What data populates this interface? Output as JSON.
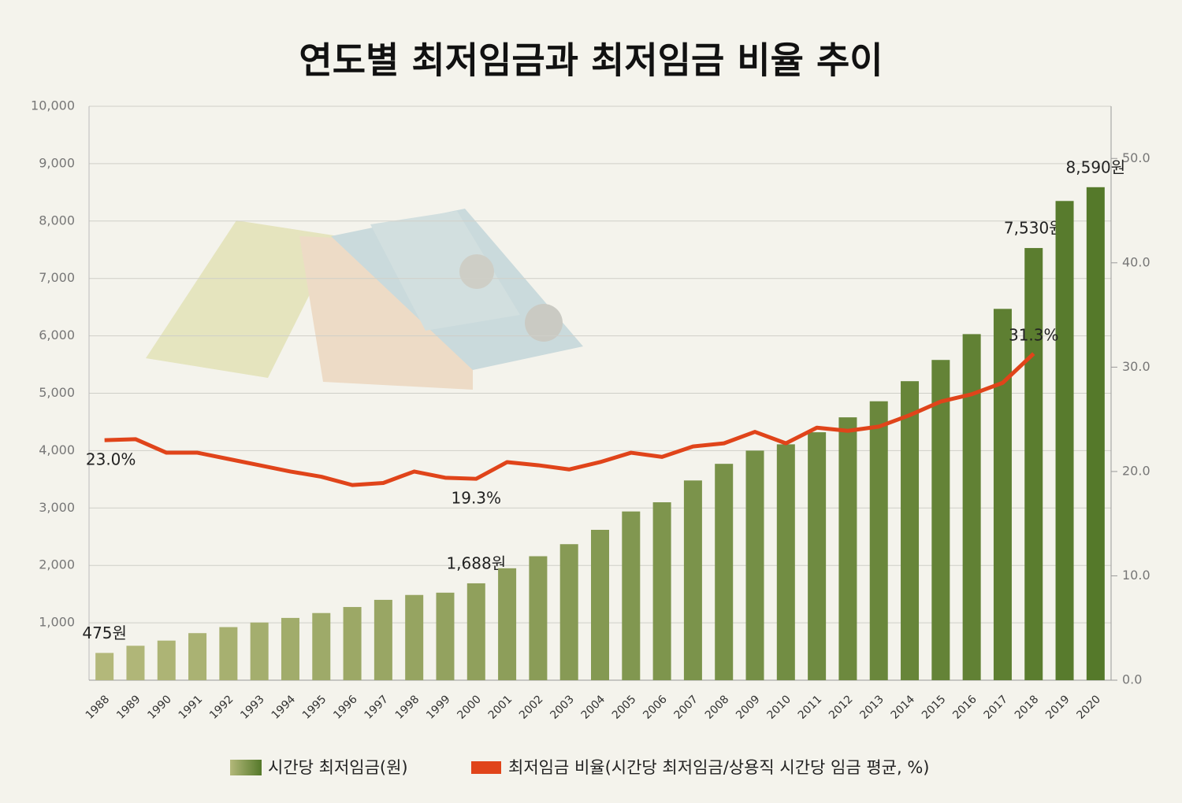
{
  "chart_data": {
    "type": "bar_line",
    "title": "연도별 최저임금과 최저임금 비율 추이",
    "categories": [
      "1988",
      "1989",
      "1990",
      "1991",
      "1992",
      "1993",
      "1994",
      "1995",
      "1996",
      "1997",
      "1998",
      "1999",
      "2000",
      "2001",
      "2002",
      "2003",
      "2004",
      "2005",
      "2006",
      "2007",
      "2008",
      "2009",
      "2010",
      "2011",
      "2012",
      "2013",
      "2014",
      "2015",
      "2016",
      "2017",
      "2018",
      "2019",
      "2020"
    ],
    "series": [
      {
        "name": "시간당 최저임금(원)",
        "type": "bar",
        "color": "#b3b87a",
        "color_end": "#55792a",
        "values": [
          475,
          600,
          690,
          820,
          925,
          1005,
          1085,
          1170,
          1275,
          1400,
          1485,
          1525,
          1688,
          1950,
          2160,
          2370,
          2620,
          2940,
          3100,
          3480,
          3770,
          4000,
          4110,
          4320,
          4580,
          4860,
          5210,
          5580,
          6030,
          6470,
          7530,
          8350,
          8590
        ],
        "value_labels": [
          "475원",
          null,
          null,
          null,
          null,
          null,
          null,
          null,
          null,
          null,
          null,
          null,
          "1,688원",
          null,
          null,
          null,
          null,
          null,
          null,
          null,
          null,
          null,
          null,
          null,
          null,
          null,
          null,
          null,
          null,
          null,
          "7,530원",
          null,
          "8,590원"
        ]
      },
      {
        "name": "최저임금 비율(시간당 최저임금/상용직 시간당 임금 평균, %)",
        "type": "line",
        "axis": "y2",
        "color": "#e0441a",
        "values": [
          23.0,
          23.1,
          21.8,
          21.8,
          21.2,
          20.6,
          20.0,
          19.5,
          18.7,
          18.9,
          20.0,
          19.4,
          19.3,
          20.9,
          20.6,
          20.2,
          20.9,
          21.8,
          21.4,
          22.4,
          22.7,
          23.8,
          22.7,
          24.2,
          23.9,
          24.3,
          25.4,
          26.7,
          27.4,
          28.5,
          31.3,
          null,
          null
        ],
        "value_labels": [
          "23.0%",
          null,
          null,
          null,
          null,
          null,
          null,
          null,
          null,
          null,
          null,
          null,
          "19.3%",
          null,
          null,
          null,
          null,
          null,
          null,
          null,
          null,
          null,
          null,
          null,
          null,
          null,
          null,
          null,
          null,
          null,
          "31.3%",
          null,
          null
        ]
      }
    ],
    "ylim": [
      0,
      10000
    ],
    "yticks": [
      {
        "value": 1000,
        "label": "1,000"
      },
      {
        "value": 2000,
        "label": "2,000"
      },
      {
        "value": 3000,
        "label": "3,000"
      },
      {
        "value": 4000,
        "label": "4,000"
      },
      {
        "value": 5000,
        "label": "5,000"
      },
      {
        "value": 6000,
        "label": "6,000"
      },
      {
        "value": 7000,
        "label": "7,000"
      },
      {
        "value": 8000,
        "label": "8,000"
      },
      {
        "value": 9000,
        "label": "9,000"
      },
      {
        "value": 10000,
        "label": "10,000"
      }
    ],
    "y2lim": [
      0,
      55
    ],
    "y2ticks": [
      {
        "value": 0,
        "label": "0.0"
      },
      {
        "value": 10,
        "label": "10.0"
      },
      {
        "value": 20,
        "label": "20.0"
      },
      {
        "value": 30,
        "label": "30.0"
      },
      {
        "value": 40,
        "label": "40.0"
      },
      {
        "value": 50,
        "label": "50.0"
      }
    ],
    "grid": true
  }
}
